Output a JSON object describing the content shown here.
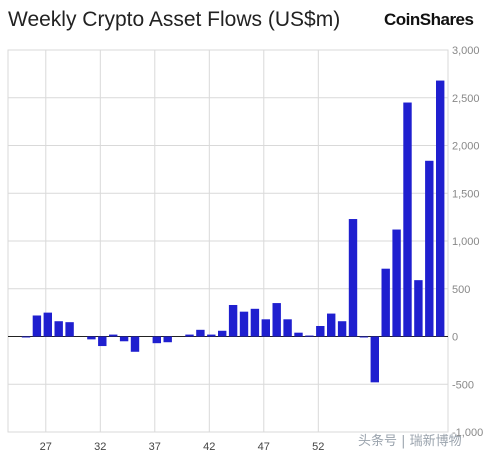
{
  "header": {
    "title": "Weekly Crypto Asset Flows (US$m)",
    "brand": "CoinShares"
  },
  "watermark": "头条号 | 瑞新博物",
  "colors": {
    "bar": "#1f1fcf",
    "grid": "#d9d9d9",
    "axis": "#222222"
  },
  "chart_data": {
    "type": "bar",
    "title": "Weekly Crypto Asset Flows (US$m)",
    "xlabel": "",
    "ylabel": "",
    "week_start": 25,
    "x_tick_labels": [
      "27",
      "32",
      "37",
      "42",
      "47",
      "52"
    ],
    "y_tick_labels": [
      "3,000",
      "2,500",
      "2,000",
      "1,500",
      "1,000",
      "500",
      "0",
      "-500",
      "-1,000"
    ],
    "ylim": [
      -1000,
      3000
    ],
    "grid": true,
    "values": [
      -10,
      220,
      250,
      160,
      150,
      0,
      -30,
      -100,
      20,
      -50,
      -160,
      0,
      -70,
      -60,
      0,
      20,
      70,
      20,
      60,
      330,
      260,
      290,
      180,
      350,
      180,
      40,
      10,
      110,
      240,
      160,
      1230,
      -10,
      -480,
      710,
      1120,
      2450,
      590,
      1840,
      2680
    ]
  }
}
